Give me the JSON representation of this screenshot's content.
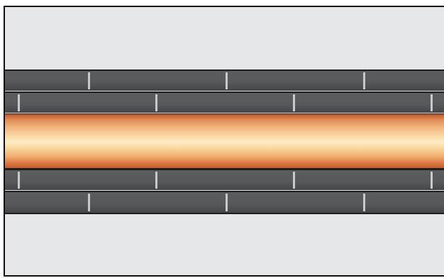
{
  "scene": {
    "description_free": true,
    "colors": {
      "background_panel": "#e5e6e8",
      "brick": "#58595b",
      "brick_seam": "#c9c9cb",
      "pipe_highlight": "#fdebc6",
      "pipe_shadow": "#c45a2a",
      "outline": "#111111"
    },
    "icons": [
      "pipe-graphic",
      "brick-wall-graphic"
    ]
  }
}
